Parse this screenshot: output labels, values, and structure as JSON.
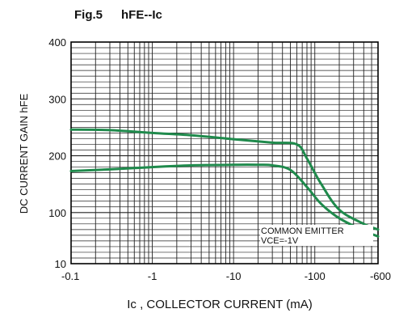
{
  "chart_data": {
    "type": "line",
    "title": "Fig.5",
    "subtitle": "hFE--Ic",
    "xlabel": "Ic , COLLECTOR CURRENT (mA)",
    "ylabel": "DC CURRENT GAIN hFE",
    "x_scale": "log",
    "xlim": [
      -0.1,
      -600
    ],
    "ylim": [
      10,
      400
    ],
    "x_ticks": [
      "-0.1",
      "-1",
      "-10",
      "-100",
      "-600"
    ],
    "y_ticks": [
      "10",
      "100",
      "200",
      "300",
      "400"
    ],
    "grid": true,
    "annotation_line1": "COMMON EMITTER",
    "annotation_line2": "VCE=-1V",
    "line_color": "#1f8a4c",
    "series": [
      {
        "x": [
          -0.1,
          -0.3,
          -1,
          -3,
          -10,
          -30,
          -60,
          -80,
          -120,
          -200,
          -400,
          -600
        ],
        "y": [
          246,
          245,
          240,
          236,
          229,
          223,
          220,
          195,
          150,
          105,
          80,
          70
        ]
      },
      {
        "x": [
          -0.1,
          -0.3,
          -1,
          -3,
          -10,
          -20,
          -30,
          -50,
          -80,
          -120,
          -200,
          -400,
          -600
        ],
        "y": [
          173,
          176,
          180,
          183,
          184,
          184,
          183,
          175,
          145,
          115,
          90,
          68,
          58
        ]
      }
    ]
  }
}
